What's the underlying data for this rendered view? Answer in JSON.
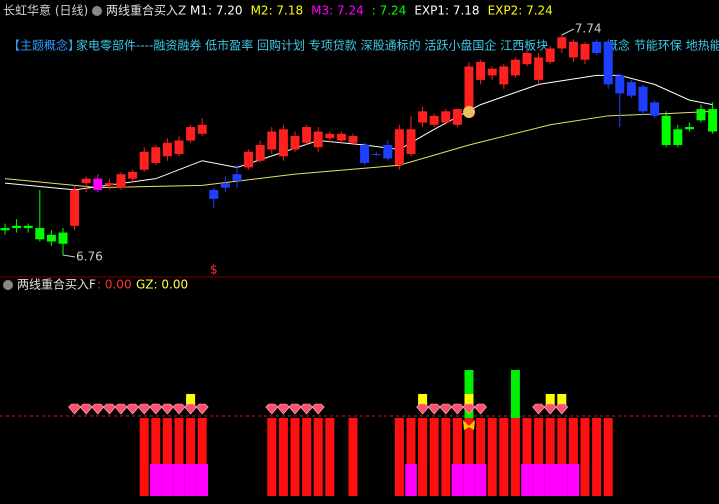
{
  "header": {
    "stock": "长虹华意 (日线)",
    "indicator": "两线重合买入Z",
    "items": [
      {
        "text": "M1: 7.20",
        "color": "#ffffff"
      },
      {
        "text": "M2: 7.18",
        "color": "#ffff00"
      },
      {
        "text": "M3: 7.24",
        "color": "#ff00ff"
      },
      {
        "text": ": 7.24",
        "color": "#00ff00"
      },
      {
        "text": "EXP1: 7.18",
        "color": "#ffffff"
      },
      {
        "text": "EXP2: 7.24",
        "color": "#ffff00"
      }
    ]
  },
  "concepts": {
    "head": "【主题概念】",
    "text": "家电零部件----融资融券 低市盈率 回购计划 专项贷款 深股通标的 活跃小盘国企 江西板块",
    "tail": "概念 节能环保 地热能"
  },
  "chart_data": {
    "type": "candlestick",
    "open": [
      6.88,
      6.89,
      6.88,
      6.88,
      6.85,
      6.86,
      6.89,
      7.08,
      7.05,
      7.07,
      7.06,
      7.1,
      7.14,
      7.17,
      7.2,
      7.21,
      7.27,
      7.3,
      7.05,
      7.08,
      7.12,
      7.15,
      7.18,
      7.23,
      7.2,
      7.23,
      7.26,
      7.24,
      7.28,
      7.27,
      7.26,
      7.25,
      7.21,
      7.25,
      7.16,
      7.21,
      7.35,
      7.34,
      7.35,
      7.34,
      7.38,
      7.54,
      7.56,
      7.52,
      7.56,
      7.61,
      7.54,
      7.62,
      7.68,
      7.64,
      7.63,
      7.71,
      7.71,
      7.56,
      7.53,
      7.51,
      7.44,
      7.38,
      7.32,
      7.33,
      7.41,
      7.41
    ],
    "high": [
      6.9,
      6.92,
      6.9,
      7.05,
      6.87,
      6.88,
      7.07,
      7.11,
      7.12,
      7.1,
      7.13,
      7.14,
      7.24,
      7.25,
      7.28,
      7.29,
      7.34,
      7.37,
      7.06,
      7.11,
      7.16,
      7.23,
      7.27,
      7.33,
      7.34,
      7.31,
      7.34,
      7.33,
      7.31,
      7.31,
      7.3,
      7.26,
      7.22,
      7.27,
      7.34,
      7.38,
      7.42,
      7.39,
      7.41,
      7.41,
      7.62,
      7.63,
      7.6,
      7.61,
      7.64,
      7.67,
      7.66,
      7.69,
      7.74,
      7.72,
      7.71,
      7.72,
      7.72,
      7.57,
      7.54,
      7.52,
      7.45,
      7.4,
      7.34,
      7.35,
      7.43,
      7.44
    ],
    "low": [
      6.85,
      6.86,
      6.86,
      6.82,
      6.8,
      6.76,
      6.87,
      7.04,
      7.04,
      7.05,
      7.05,
      7.08,
      7.13,
      7.16,
      7.18,
      7.2,
      7.26,
      7.29,
      6.97,
      7.04,
      7.06,
      7.14,
      7.17,
      7.21,
      7.18,
      7.22,
      7.25,
      7.22,
      7.26,
      7.26,
      7.25,
      7.16,
      7.2,
      7.18,
      7.14,
      7.2,
      7.33,
      7.33,
      7.34,
      7.33,
      7.37,
      7.52,
      7.54,
      7.5,
      7.55,
      7.6,
      7.52,
      7.61,
      7.66,
      7.62,
      7.61,
      7.65,
      7.5,
      7.33,
      7.46,
      7.38,
      7.37,
      7.24,
      7.24,
      7.31,
      7.35,
      7.3
    ],
    "close": [
      6.87,
      6.88,
      6.89,
      6.83,
      6.82,
      6.81,
      7.05,
      7.1,
      7.1,
      7.08,
      7.12,
      7.13,
      7.22,
      7.24,
      7.26,
      7.27,
      7.33,
      7.34,
      7.01,
      7.06,
      7.09,
      7.22,
      7.25,
      7.31,
      7.32,
      7.29,
      7.33,
      7.31,
      7.3,
      7.3,
      7.29,
      7.17,
      7.21,
      7.19,
      7.32,
      7.32,
      7.4,
      7.38,
      7.4,
      7.41,
      7.6,
      7.62,
      7.59,
      7.6,
      7.63,
      7.66,
      7.64,
      7.68,
      7.73,
      7.71,
      7.7,
      7.66,
      7.52,
      7.48,
      7.47,
      7.4,
      7.38,
      7.25,
      7.25,
      7.32,
      7.36,
      7.31
    ],
    "colors": [
      "#00ff00",
      "#00ff00",
      "#00ff00",
      "#00ff00",
      "#00ff00",
      "#00ff00",
      "#ff2020",
      "#ff2020",
      "#ff00ff",
      "#ff2020",
      "#ff2020",
      "#ff2020",
      "#ff2020",
      "#ff2020",
      "#ff2020",
      "#ff2020",
      "#ff2020",
      "#ff2020",
      "#1f3fff",
      "#1f3fff",
      "#1f3fff",
      "#ff2020",
      "#ff2020",
      "#ff2020",
      "#ff2020",
      "#ff2020",
      "#ff2020",
      "#ff2020",
      "#ff2020",
      "#ff2020",
      "#ff2020",
      "#1f3fff",
      "#1f3fff",
      "#1f3fff",
      "#ff2020",
      "#ff2020",
      "#ff2020",
      "#ff2020",
      "#ff2020",
      "#ff2020",
      "#ff2020",
      "#ff2020",
      "#ff2020",
      "#ff2020",
      "#ff2020",
      "#ff2020",
      "#ff2020",
      "#ff2020",
      "#ff2020",
      "#ff2020",
      "#ff2020",
      "#1f3fff",
      "#1f3fff",
      "#1f3fff",
      "#1f3fff",
      "#1f3fff",
      "#1f3fff",
      "#00ff00",
      "#00ff00",
      "#00ff00",
      "#00ff00",
      "#00ff00"
    ],
    "lines": [
      {
        "color": "#ffffff",
        "x": [
          0,
          6,
          13,
          17,
          20,
          27,
          31,
          34,
          37,
          41,
          46,
          51,
          53,
          56,
          59,
          61
        ],
        "values": [
          7.08,
          7.05,
          7.1,
          7.18,
          7.15,
          7.27,
          7.25,
          7.23,
          7.32,
          7.43,
          7.52,
          7.56,
          7.56,
          7.52,
          7.45,
          7.43
        ]
      },
      {
        "color": "#e8e060",
        "x": [
          0,
          8,
          17,
          25,
          34,
          40,
          47,
          52,
          57,
          61
        ],
        "values": [
          7.1,
          7.06,
          7.07,
          7.12,
          7.16,
          7.25,
          7.34,
          7.38,
          7.39,
          7.4
        ]
      }
    ],
    "annotations": {
      "high": "7.74",
      "low": "6.76",
      "dollar": "$"
    },
    "lower": {
      "indicator": "两线重合买入F",
      "f": ": 0.00",
      "gz": "GZ: 0.00"
    },
    "signals": {
      "red_bars": [
        12,
        13,
        14,
        15,
        16,
        17,
        23,
        24,
        25,
        26,
        27,
        28,
        30,
        34,
        35,
        36,
        37,
        38,
        39,
        40,
        41,
        42,
        43,
        44,
        45,
        46,
        47,
        48,
        49,
        50,
        51,
        52
      ],
      "magenta_bars": [
        13,
        14,
        15,
        16,
        17,
        35,
        39,
        40,
        41,
        45,
        46,
        47,
        48,
        49
      ],
      "green_bars": [
        40,
        44
      ],
      "yellow_marks": [
        16,
        36,
        40,
        47,
        48
      ],
      "diamonds": [
        6,
        7,
        8,
        9,
        10,
        11,
        12,
        13,
        14,
        15,
        16,
        17,
        23,
        24,
        25,
        26,
        27,
        36,
        37,
        38,
        39,
        40,
        41,
        46,
        47,
        48
      ]
    }
  }
}
